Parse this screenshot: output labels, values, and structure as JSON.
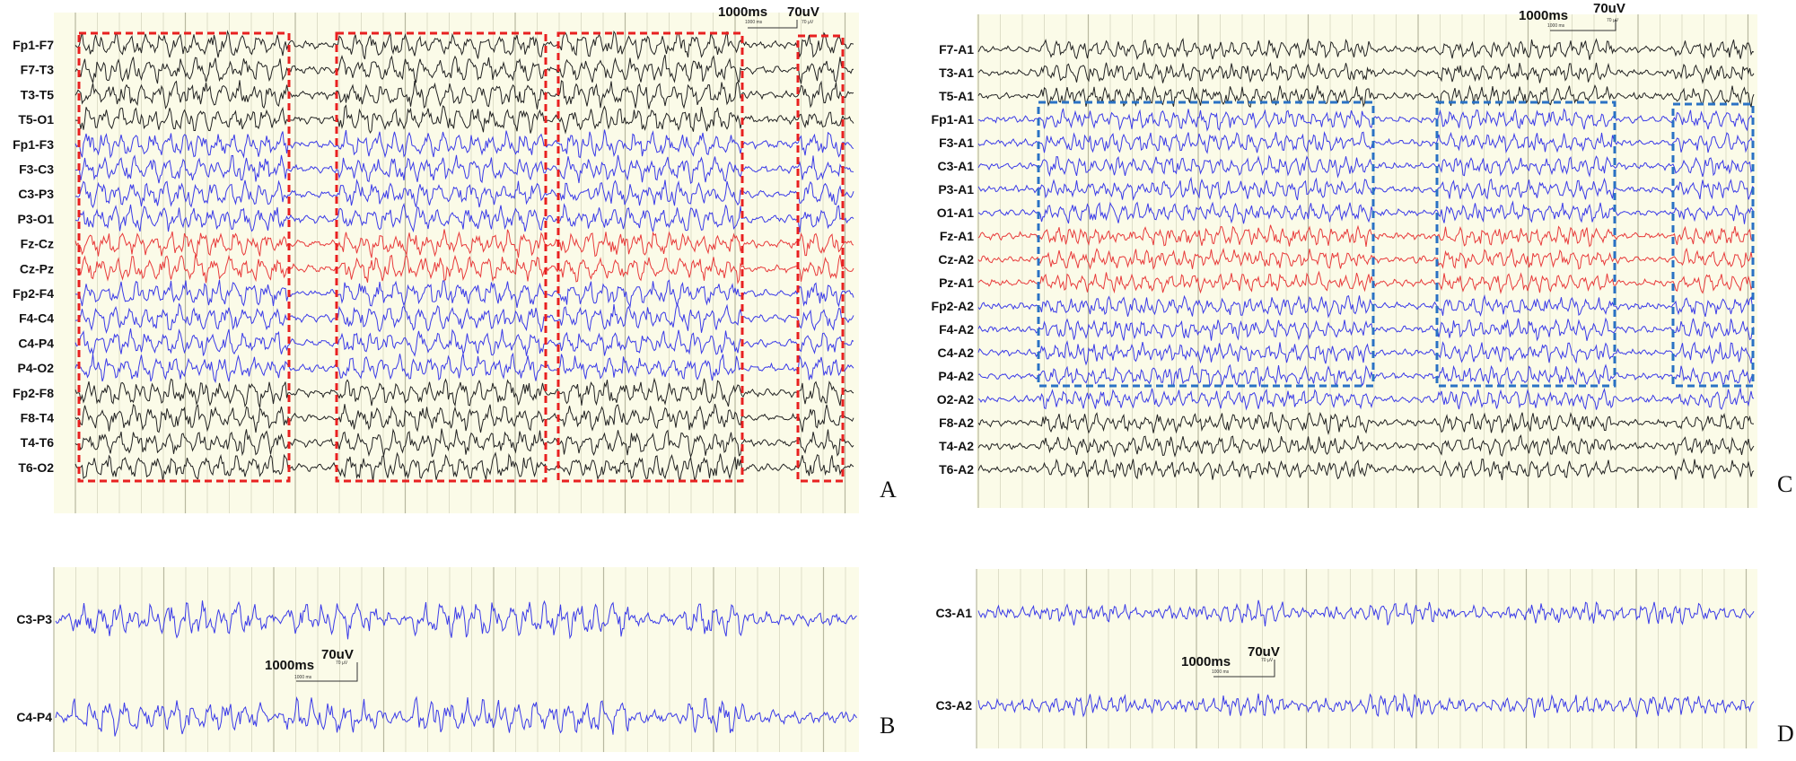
{
  "colors": {
    "background": "#fbfbe8",
    "grid": "#d8d8c0",
    "grid_major": "#b8b8a0",
    "black_trace": "#222222",
    "blue_trace": "#3a3ae8",
    "red_trace": "#e83a3a",
    "red_box": "#e82020",
    "blue_box": "#2a72c4"
  },
  "scale": {
    "time_label": "1000ms",
    "amp_label": "70uV",
    "time_small": "1000 ms",
    "amp_small": "70 µV"
  },
  "panels": {
    "A": {
      "letter": "A",
      "channels": [
        {
          "label": "Fp1-F7",
          "color": "black"
        },
        {
          "label": "F7-T3",
          "color": "black"
        },
        {
          "label": "T3-T5",
          "color": "black"
        },
        {
          "label": "T5-O1",
          "color": "black"
        },
        {
          "label": "Fp1-F3",
          "color": "blue"
        },
        {
          "label": "F3-C3",
          "color": "blue"
        },
        {
          "label": "C3-P3",
          "color": "blue"
        },
        {
          "label": "P3-O1",
          "color": "blue"
        },
        {
          "label": "Fz-Cz",
          "color": "red"
        },
        {
          "label": "Cz-Pz",
          "color": "red"
        },
        {
          "label": "Fp2-F4",
          "color": "blue"
        },
        {
          "label": "F4-C4",
          "color": "blue"
        },
        {
          "label": "C4-P4",
          "color": "blue"
        },
        {
          "label": "P4-O2",
          "color": "blue"
        },
        {
          "label": "Fp2-F8",
          "color": "black"
        },
        {
          "label": "F8-T4",
          "color": "black"
        },
        {
          "label": "T4-T6",
          "color": "black"
        },
        {
          "label": "T6-O2",
          "color": "black"
        }
      ]
    },
    "B": {
      "letter": "B",
      "channels": [
        {
          "label": "C3-P3",
          "color": "blue"
        },
        {
          "label": "C4-P4",
          "color": "blue"
        }
      ]
    },
    "C": {
      "letter": "C",
      "channels": [
        {
          "label": "F7-A1",
          "color": "black"
        },
        {
          "label": "T3-A1",
          "color": "black"
        },
        {
          "label": "T5-A1",
          "color": "black"
        },
        {
          "label": "Fp1-A1",
          "color": "blue"
        },
        {
          "label": "F3-A1",
          "color": "blue"
        },
        {
          "label": "C3-A1",
          "color": "blue"
        },
        {
          "label": "P3-A1",
          "color": "blue"
        },
        {
          "label": "O1-A1",
          "color": "blue"
        },
        {
          "label": "Fz-A1",
          "color": "red"
        },
        {
          "label": "Cz-A2",
          "color": "red"
        },
        {
          "label": "Pz-A1",
          "color": "red"
        },
        {
          "label": "Fp2-A2",
          "color": "blue"
        },
        {
          "label": "F4-A2",
          "color": "blue"
        },
        {
          "label": "C4-A2",
          "color": "blue"
        },
        {
          "label": "P4-A2",
          "color": "blue"
        },
        {
          "label": "O2-A2",
          "color": "blue"
        },
        {
          "label": "F8-A2",
          "color": "black"
        },
        {
          "label": "T4-A2",
          "color": "black"
        },
        {
          "label": "T6-A2",
          "color": "black"
        }
      ]
    },
    "D": {
      "letter": "D",
      "channels": [
        {
          "label": "C3-A1",
          "color": "blue"
        },
        {
          "label": "C3-A2",
          "color": "blue"
        }
      ]
    }
  }
}
